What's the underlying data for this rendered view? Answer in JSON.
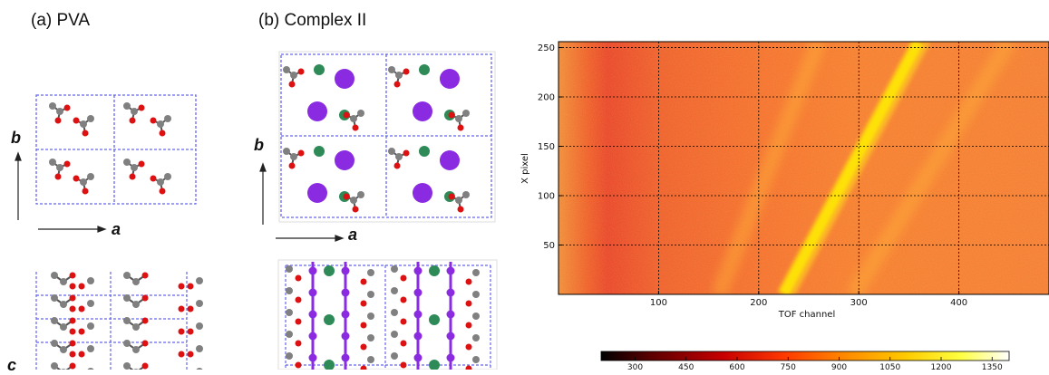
{
  "panels": {
    "a": {
      "title": "(a) PVA",
      "axis_b": "b",
      "axis_a": "a",
      "axis_c": "c"
    },
    "b": {
      "title": "(b) Complex II",
      "axis_b": "b",
      "axis_a": "a"
    }
  },
  "colors": {
    "carbon": "#808080",
    "oxygen": "#dd1111",
    "iodine": "#8a2be2",
    "potassium": "#2e8b57",
    "cell_edge": "#6666ee"
  },
  "chart_data": {
    "type": "heatmap",
    "xlabel": "TOF channel",
    "ylabel": "X pixel",
    "x_ticks": [
      "100",
      "200",
      "300",
      "400"
    ],
    "y_ticks": [
      "50",
      "100",
      "150",
      "200",
      "250"
    ],
    "xlim": [
      0,
      490
    ],
    "ylim": [
      0,
      256
    ],
    "grid": true,
    "colorbar": {
      "ticks": [
        "300",
        "450",
        "600",
        "750",
        "900",
        "1050",
        "1200",
        "1350"
      ],
      "range": [
        200,
        1400
      ],
      "colormap": "hot"
    },
    "features": [
      {
        "kind": "bright-stripe",
        "from": [
          225,
          0
        ],
        "to": [
          360,
          256
        ]
      },
      {
        "kind": "faint-stripe",
        "from": [
          295,
          0
        ],
        "to": [
          450,
          256
        ]
      },
      {
        "kind": "faint-stripe",
        "from": [
          160,
          0
        ],
        "to": [
          260,
          256
        ]
      }
    ]
  }
}
